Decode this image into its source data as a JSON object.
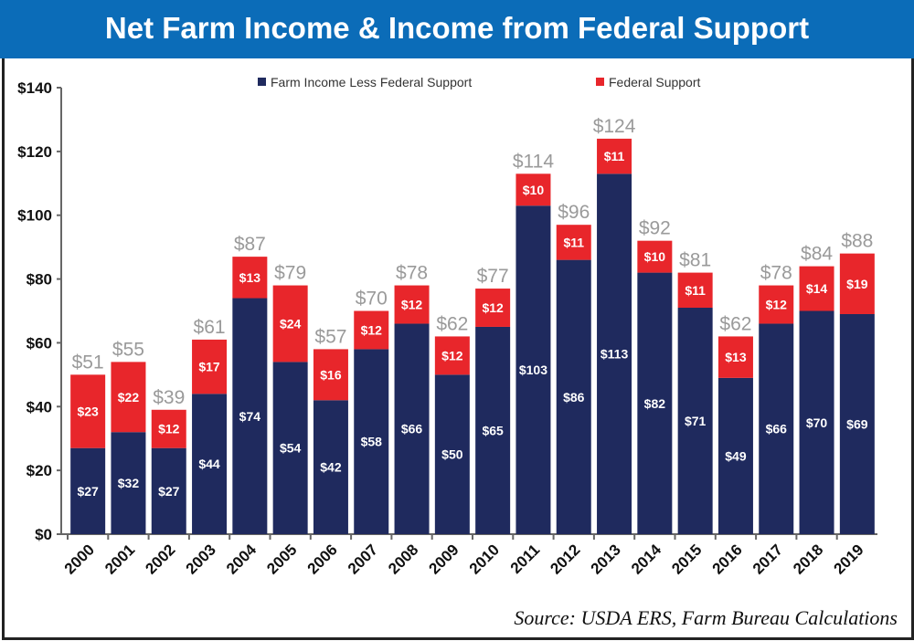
{
  "header": {
    "title": "Net Farm Income & Income from Federal Support"
  },
  "source": "Source: USDA ERS, Farm Bureau Calculations",
  "chart_data": {
    "type": "bar",
    "stacked": true,
    "title": "Net Farm Income & Income from Federal Support",
    "xlabel": "",
    "ylabel": "",
    "ylim": [
      0,
      140
    ],
    "yticks": [
      0,
      20,
      40,
      60,
      80,
      100,
      120,
      140
    ],
    "ytick_labels": [
      "$0",
      "$20",
      "$40",
      "$60",
      "$80",
      "$100",
      "$120",
      "$140"
    ],
    "legend_position": "top",
    "categories": [
      "2000",
      "2001",
      "2002",
      "2003",
      "2004",
      "2005",
      "2006",
      "2007",
      "2008",
      "2009",
      "2010",
      "2011",
      "2012",
      "2013",
      "2014",
      "2015",
      "2016",
      "2017",
      "2018",
      "2019"
    ],
    "series": [
      {
        "name": "Farm Income Less Federal Support",
        "color": "#1f2a5e",
        "values": [
          27,
          32,
          27,
          44,
          74,
          54,
          42,
          58,
          66,
          50,
          65,
          103,
          86,
          113,
          82,
          71,
          49,
          66,
          70,
          69
        ]
      },
      {
        "name": "Federal Support",
        "color": "#e8262b",
        "values": [
          23,
          22,
          12,
          17,
          13,
          24,
          16,
          12,
          12,
          12,
          12,
          10,
          11,
          11,
          10,
          11,
          13,
          12,
          14,
          19
        ]
      }
    ],
    "totals": [
      51,
      55,
      39,
      61,
      87,
      79,
      57,
      70,
      78,
      62,
      77,
      114,
      96,
      124,
      92,
      81,
      62,
      78,
      84,
      88
    ],
    "total_color": "#9a9a9a"
  }
}
